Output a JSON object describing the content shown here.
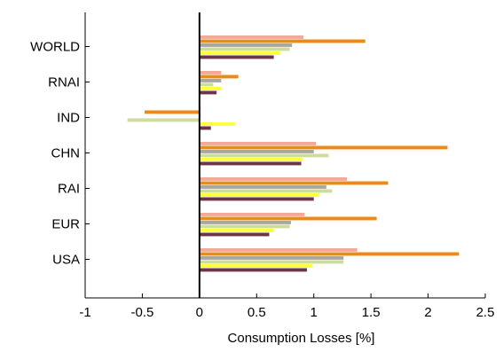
{
  "chart_data": {
    "type": "bar",
    "orientation": "horizontal",
    "title": "",
    "xlabel": "Consumption Losses [%]",
    "ylabel": "",
    "xlim": [
      -1,
      2.5
    ],
    "xticks": [
      "-1",
      "-0.5",
      "0",
      "0.5",
      "1",
      "1.5",
      "2",
      "2.5"
    ],
    "grid": false,
    "legend": "none",
    "categories": [
      "WORLD",
      "RNAI",
      "IND",
      "CHN",
      "RAI",
      "EUR",
      "USA"
    ],
    "series": [
      {
        "color": "#f4a6a0",
        "values": [
          0.91,
          0.19,
          0.01,
          1.02,
          1.29,
          0.92,
          1.38
        ]
      },
      {
        "color": "#ee8a10",
        "values": [
          1.45,
          0.34,
          -0.48,
          2.17,
          1.65,
          1.55,
          2.27
        ]
      },
      {
        "color": "#a8a8a0",
        "values": [
          0.81,
          0.19,
          0.01,
          1.0,
          1.11,
          0.8,
          1.26
        ]
      },
      {
        "color": "#cfdca0",
        "values": [
          0.79,
          0.12,
          -0.63,
          1.13,
          1.16,
          0.79,
          1.26
        ]
      },
      {
        "color": "#ffff3c",
        "values": [
          0.71,
          0.19,
          0.31,
          0.9,
          1.05,
          0.65,
          0.99
        ]
      },
      {
        "color": "#6b3548",
        "values": [
          0.65,
          0.15,
          0.1,
          0.89,
          1.0,
          0.61,
          0.94
        ]
      }
    ]
  }
}
